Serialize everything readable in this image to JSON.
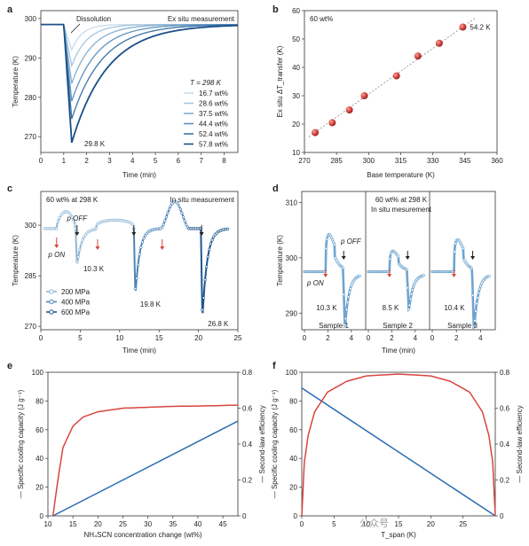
{
  "chart_data": [
    {
      "panel": "a",
      "type": "line",
      "xlabel": "Time (min)",
      "ylabel": "Temperature (K)",
      "xlim": [
        0,
        8.6
      ],
      "ylim": [
        266,
        302
      ],
      "xticks": [
        0,
        1,
        2,
        3,
        4,
        5,
        6,
        7,
        8
      ],
      "yticks": [
        270,
        280,
        290,
        300
      ],
      "annotations": {
        "dissolution": "Dissolution",
        "mode": "Ex situ measurement",
        "legend_title": "T = 298 K",
        "min_label": "29.8 K"
      },
      "series": [
        {
          "name": "16.7 wt%",
          "color": "#c9dcea",
          "min": 292.0
        },
        {
          "name": "28.6 wt%",
          "color": "#a8c6de",
          "min": 288.0
        },
        {
          "name": "37.5 wt%",
          "color": "#86aed1",
          "min": 283.5
        },
        {
          "name": "44.4 wt%",
          "color": "#5f93bf",
          "min": 279.0
        },
        {
          "name": "52.4 wt%",
          "color": "#3b74a7",
          "min": 274.5
        },
        {
          "name": "57.8 wt%",
          "color": "#1a4f88",
          "min": 268.5
        }
      ]
    },
    {
      "panel": "b",
      "type": "scatter",
      "title": "60 wt%",
      "xlabel": "Base temperature (K)",
      "ylabel": "Ex situ ΔT_transfer (K)",
      "xlim": [
        270,
        360
      ],
      "ylim": [
        10,
        60
      ],
      "xticks": [
        270,
        285,
        300,
        315,
        330,
        345,
        360
      ],
      "yticks": [
        10,
        20,
        30,
        40,
        50,
        60
      ],
      "x": [
        275,
        283,
        291,
        298,
        313,
        323,
        333,
        344
      ],
      "y": [
        17,
        20.5,
        25,
        30,
        37,
        44,
        48.5,
        54.2
      ],
      "annotation": "54.2 K"
    },
    {
      "panel": "c",
      "type": "line",
      "xlabel": "Time (min)",
      "ylabel": "Temperature (K)",
      "xlim": [
        0,
        25
      ],
      "ylim": [
        269,
        310
      ],
      "xticks": [
        0,
        5,
        10,
        15,
        20,
        25
      ],
      "yticks": [
        270,
        285,
        300
      ],
      "texts": {
        "cond": "60 wt% at 298 K",
        "mode": "In situ measurement",
        "pon": "p ON",
        "poff": "p OFF",
        "d1": "10.3 K",
        "d2": "19.8 K",
        "d3": "26.8 K"
      },
      "series": [
        {
          "name": "200 MPa",
          "color": "#8fb6d6"
        },
        {
          "name": "400 MPa",
          "color": "#4d84b8"
        },
        {
          "name": "600 MPa",
          "color": "#1f568f"
        }
      ]
    },
    {
      "panel": "d",
      "type": "line",
      "xlabel": "Time (min)",
      "ylabel": "Temperature (K)",
      "xlim": [
        0,
        5
      ],
      "ylim": [
        287,
        312
      ],
      "yticks": [
        290,
        300,
        310
      ],
      "xticks": [
        0,
        2,
        4
      ],
      "texts": {
        "cond1": "60 wt% at 298 K",
        "cond2": "In situ mesurement",
        "pon": "p ON",
        "poff": "p OFF"
      },
      "samples": [
        {
          "label": "Sample 1",
          "drop": "10.3 K",
          "peak": 308.3
        },
        {
          "label": "Sample 2",
          "drop": "8.5 K",
          "peak": 303.5
        },
        {
          "label": "Sample 3",
          "drop": "10.4 K",
          "peak": 306.8
        }
      ]
    },
    {
      "panel": "e",
      "type": "line",
      "xlabel": "NH₄SCN concentration change (wt%)",
      "ylabel": "Specific cooling capacity (J g⁻¹)",
      "ylabel2": "Second-law efficiency",
      "xlim": [
        10,
        48
      ],
      "ylim": [
        0,
        100
      ],
      "y2lim": [
        0,
        0.8
      ],
      "xticks": [
        10,
        15,
        20,
        25,
        30,
        35,
        40,
        45
      ],
      "yticks": [
        0,
        20,
        40,
        60,
        80,
        100
      ],
      "y2ticks": [
        0,
        0.2,
        0.4,
        0.6,
        0.8
      ],
      "series": [
        {
          "name": "Specific cooling capacity",
          "color": "#2b6cb0",
          "x": [
            11,
            48
          ],
          "y": [
            0,
            66
          ]
        },
        {
          "name": "Second-law efficiency",
          "color": "#d9453f",
          "x": [
            11,
            12,
            13,
            15,
            17,
            20,
            25,
            30,
            35,
            40,
            45,
            48
          ],
          "y2": [
            0,
            0.2,
            0.38,
            0.5,
            0.55,
            0.58,
            0.6,
            0.605,
            0.61,
            0.612,
            0.615,
            0.617
          ]
        }
      ]
    },
    {
      "panel": "f",
      "type": "line",
      "xlabel": "T_span (K)",
      "ylabel": "Specific cooling capacity (J g⁻¹)",
      "ylabel2": "Second-law efficiency",
      "xlim": [
        0,
        30
      ],
      "ylim": [
        0,
        100
      ],
      "y2lim": [
        0,
        0.8
      ],
      "xticks": [
        0,
        5,
        10,
        15,
        20,
        25
      ],
      "yticks": [
        0,
        20,
        40,
        60,
        80,
        100
      ],
      "y2ticks": [
        0,
        0.2,
        0.4,
        0.6,
        0.8
      ],
      "series": [
        {
          "name": "Specific cooling capacity",
          "color": "#2b6cb0",
          "x": [
            0,
            30
          ],
          "y": [
            89,
            0
          ]
        },
        {
          "name": "Second-law efficiency",
          "color": "#d9453f",
          "x": [
            0,
            0.4,
            1,
            2,
            4,
            7,
            10,
            15,
            20,
            23,
            26,
            28,
            29,
            29.6,
            30
          ],
          "y2": [
            0,
            0.3,
            0.45,
            0.58,
            0.69,
            0.75,
            0.78,
            0.79,
            0.78,
            0.75,
            0.69,
            0.58,
            0.45,
            0.3,
            0
          ]
        }
      ]
    }
  ],
  "panels": {
    "a": "a",
    "b": "b",
    "c": "c",
    "d": "d",
    "e": "e",
    "f": "f"
  },
  "watermark": "公众号"
}
